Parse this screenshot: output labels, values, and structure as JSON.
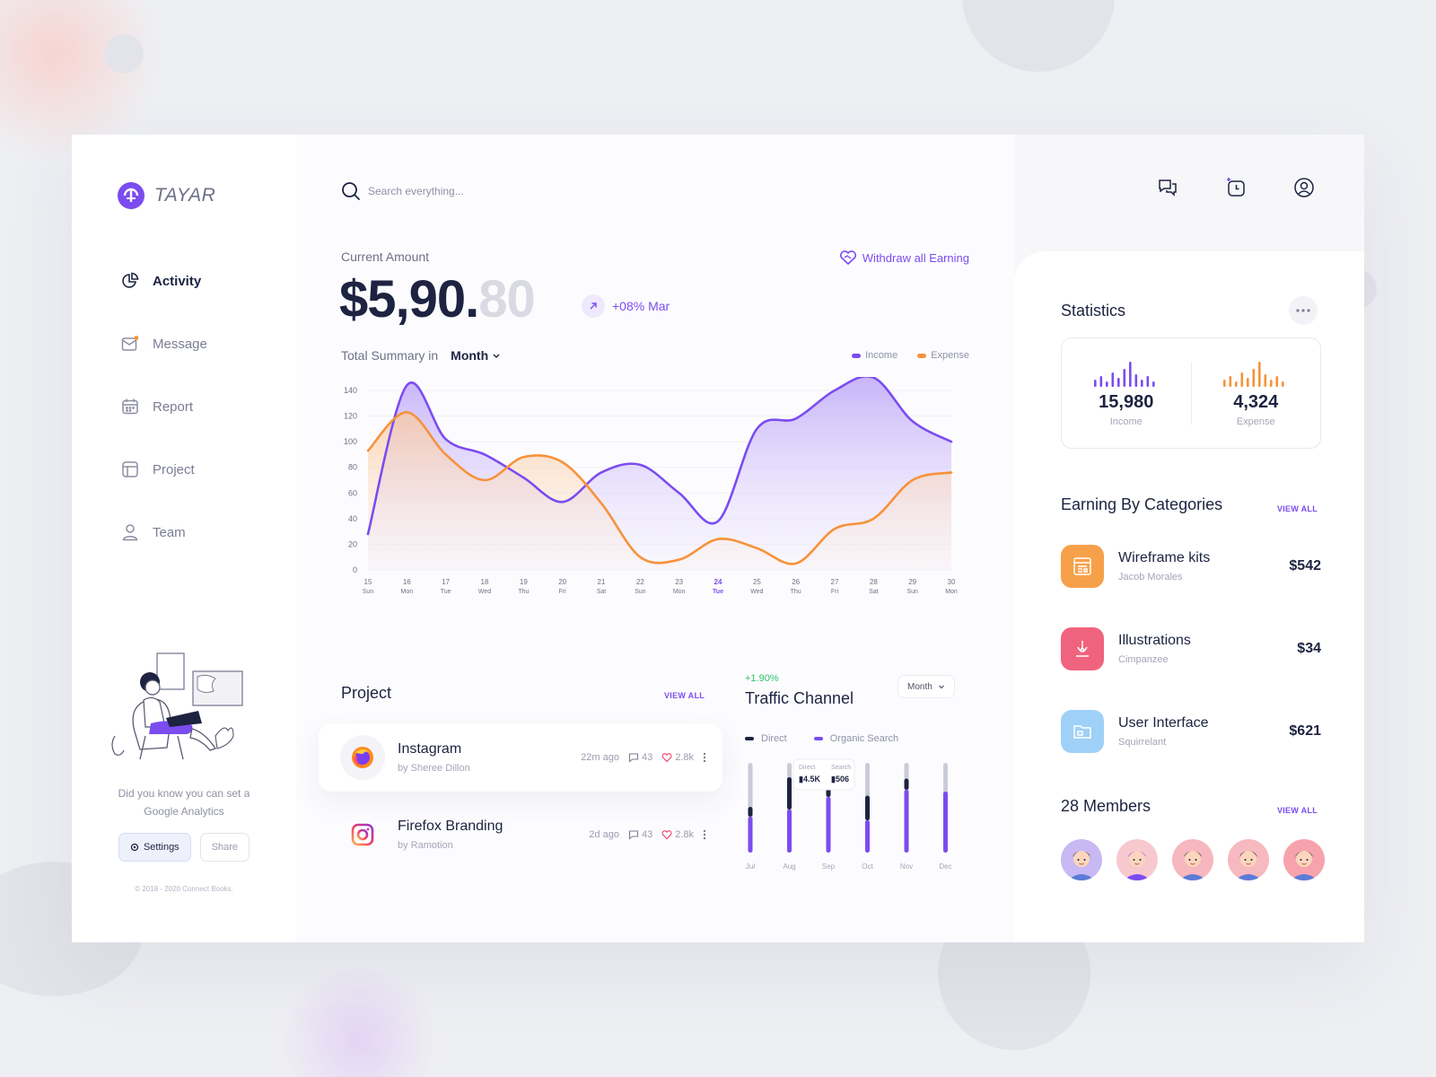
{
  "brand": {
    "name": "TAYAR"
  },
  "nav": [
    {
      "label": "Activity",
      "icon": "pie-chart-icon",
      "active": true
    },
    {
      "label": "Message",
      "icon": "mail-icon",
      "active": false
    },
    {
      "label": "Report",
      "icon": "calendar-icon",
      "active": false
    },
    {
      "label": "Project",
      "icon": "layout-icon",
      "active": false
    },
    {
      "label": "Team",
      "icon": "user-icon",
      "active": false
    }
  ],
  "promo": {
    "text": "Did you know you can set a Google Analytics",
    "settings_label": "Settings",
    "share_label": "Share",
    "copyright": "© 2018 - 2020 Connect Books."
  },
  "search": {
    "placeholder": "Search everything..."
  },
  "summary": {
    "current_label": "Current Amount",
    "withdraw_label": "Withdraw all Earning",
    "amount_main": "$5,90.",
    "amount_decimal": "80",
    "growth": "+08% Mar",
    "summary_label": "Total Summary in",
    "period": "Month",
    "legend_income": "Income",
    "legend_expense": "Expense"
  },
  "chart_data": {
    "type": "area",
    "x": [
      "15",
      "16",
      "17",
      "18",
      "19",
      "20",
      "21",
      "22",
      "23",
      "24",
      "25",
      "26",
      "27",
      "28",
      "29",
      "30"
    ],
    "x_sub": [
      "Sun",
      "Mon",
      "Tue",
      "Wed",
      "Thu",
      "Fri",
      "Sat",
      "Sun",
      "Mon",
      "Tue",
      "Wed",
      "Thu",
      "Fri",
      "Sat",
      "Sun",
      "Mon"
    ],
    "highlight_index": 9,
    "ylim": [
      0,
      140
    ],
    "yticks": [
      0,
      20,
      40,
      60,
      80,
      100,
      120,
      140
    ],
    "series": [
      {
        "name": "Income",
        "color": "#7b4cf0",
        "values": [
          28,
          144,
          102,
          90,
          72,
          53,
          76,
          82,
          60,
          38,
          110,
          118,
          140,
          150,
          116,
          100
        ]
      },
      {
        "name": "Expense",
        "color": "#f7923a",
        "values": [
          93,
          123,
          90,
          70,
          88,
          84,
          52,
          10,
          8,
          24,
          17,
          5,
          32,
          40,
          70,
          76
        ]
      }
    ]
  },
  "projects": {
    "title": "Project",
    "view_all": "VIEW ALL",
    "items": [
      {
        "name": "Instagram",
        "by": "by Sheree Dillon",
        "time": "22m ago",
        "comments": "43",
        "likes": "2.8k",
        "icon": "firefox-icon"
      },
      {
        "name": "Firefox Branding",
        "by": "by Ramotion",
        "time": "2d ago",
        "comments": "43",
        "likes": "2.8k",
        "icon": "instagram-icon"
      }
    ]
  },
  "traffic": {
    "growth": "+1.90%",
    "title": "Traffic Channel",
    "period": "Month",
    "legend_direct": "Direct",
    "legend_organic": "Organic Search",
    "months": [
      "Jul",
      "Aug",
      "Sep",
      "Oct",
      "Nov",
      "Dec"
    ],
    "direct": [
      0.22,
      0.72,
      0.58,
      0.55,
      0.25,
      0.0
    ],
    "organic": [
      0.4,
      0.48,
      0.62,
      0.36,
      0.7,
      0.68
    ],
    "tooltip_direct_label": "Direct",
    "tooltip_direct": "4.5K",
    "tooltip_search_label": "Search",
    "tooltip_search": "506",
    "colors": {
      "direct": "#1d2340",
      "organic": "#7b4cf0",
      "track": "#c9ccd8"
    }
  },
  "statistics": {
    "title": "Statistics",
    "income_value": "15,980",
    "income_label": "Income",
    "expense_value": "4,324",
    "expense_label": "Expense"
  },
  "earnings": {
    "title": "Earning By Categories",
    "view_all": "VIEW ALL",
    "items": [
      {
        "name": "Wireframe kits",
        "by": "Jacob Morales",
        "amount": "$542",
        "color": "#f7a04a",
        "icon": "layout-icon"
      },
      {
        "name": "Illustrations",
        "by": "Cimpanzee",
        "amount": "$34",
        "color": "#f0637e",
        "icon": "pen-tool-icon"
      },
      {
        "name": "User Interface",
        "by": "Squirrelant",
        "amount": "$621",
        "color": "#9fd0f7",
        "icon": "folder-icon"
      }
    ]
  },
  "members": {
    "title": "28 Members",
    "view_all": "VIEW ALL",
    "avatar_colors": [
      "#c8b8f3",
      "#f8c8cf",
      "#f6b7be",
      "#f6b9c0",
      "#f6a3ad"
    ]
  }
}
